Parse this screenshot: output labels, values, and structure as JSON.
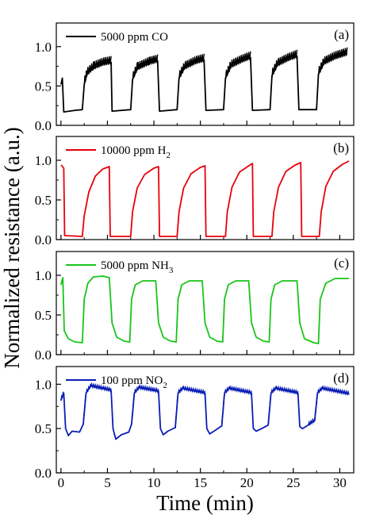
{
  "chart_data": {
    "type": "line",
    "xlabel": "Time (min)",
    "ylabel": "Normalized resistance (a.u.)",
    "x_ticks": [
      0,
      5,
      10,
      15,
      20,
      25,
      30
    ],
    "xlim": [
      -0.5,
      31.5
    ],
    "grid": false,
    "legend_position": "top-left",
    "panels": [
      {
        "tag": "(a)",
        "legend": "5000 ppm CO",
        "color": "#000000",
        "ylim": [
          0,
          1.3
        ],
        "y_ticks": [
          "0.0",
          "0.5",
          "1.0"
        ],
        "y_tick_values": [
          0,
          0.5,
          1.0
        ],
        "points": [
          [
            0,
            0.52
          ],
          [
            0.15,
            0.6
          ],
          [
            0.3,
            0.17
          ],
          [
            1.5,
            0.19
          ],
          [
            2.3,
            0.2
          ],
          [
            2.5,
            0.52
          ],
          [
            2.8,
            0.65
          ],
          [
            3.5,
            0.73
          ],
          [
            4.5,
            0.78
          ],
          [
            5.4,
            0.8
          ],
          [
            5.5,
            0.18
          ],
          [
            7.5,
            0.2
          ],
          [
            7.7,
            0.58
          ],
          [
            8.2,
            0.72
          ],
          [
            9.5,
            0.79
          ],
          [
            10.4,
            0.82
          ],
          [
            10.6,
            0.18
          ],
          [
            12.5,
            0.2
          ],
          [
            12.7,
            0.6
          ],
          [
            13.3,
            0.73
          ],
          [
            14.5,
            0.8
          ],
          [
            15.4,
            0.83
          ],
          [
            15.6,
            0.19
          ],
          [
            17.5,
            0.2
          ],
          [
            17.7,
            0.6
          ],
          [
            18.3,
            0.75
          ],
          [
            19.5,
            0.82
          ],
          [
            20.4,
            0.86
          ],
          [
            20.6,
            0.19
          ],
          [
            22.5,
            0.2
          ],
          [
            22.7,
            0.63
          ],
          [
            23.3,
            0.77
          ],
          [
            24.5,
            0.84
          ],
          [
            25.4,
            0.88
          ],
          [
            25.6,
            0.2
          ],
          [
            27.5,
            0.2
          ],
          [
            27.7,
            0.65
          ],
          [
            28.3,
            0.79
          ],
          [
            29.5,
            0.86
          ],
          [
            30.8,
            0.91
          ]
        ],
        "noise_band": 0.08
      },
      {
        "tag": "(b)",
        "legend": "10000 ppm H2",
        "legend_main": "10000 ppm H",
        "legend_sub": "2",
        "color": "#e8000b",
        "ylim": [
          0,
          1.3
        ],
        "y_ticks": [
          "0.0",
          "0.5",
          "1.0"
        ],
        "y_tick_values": [
          0,
          0.5,
          1.0
        ],
        "points": [
          [
            0,
            0.94
          ],
          [
            0.1,
            0.93
          ],
          [
            0.3,
            0.9
          ],
          [
            0.4,
            0.05
          ],
          [
            2.3,
            0.04
          ],
          [
            2.5,
            0.3
          ],
          [
            3.0,
            0.6
          ],
          [
            3.7,
            0.8
          ],
          [
            4.5,
            0.89
          ],
          [
            5.2,
            0.92
          ],
          [
            5.3,
            0.04
          ],
          [
            7.5,
            0.04
          ],
          [
            7.7,
            0.35
          ],
          [
            8.2,
            0.65
          ],
          [
            9.0,
            0.82
          ],
          [
            10.0,
            0.9
          ],
          [
            10.5,
            0.92
          ],
          [
            10.6,
            0.04
          ],
          [
            12.5,
            0.04
          ],
          [
            12.7,
            0.35
          ],
          [
            13.2,
            0.65
          ],
          [
            14.0,
            0.83
          ],
          [
            15.0,
            0.91
          ],
          [
            15.5,
            0.93
          ],
          [
            15.6,
            0.04
          ],
          [
            17.7,
            0.04
          ],
          [
            17.9,
            0.35
          ],
          [
            18.4,
            0.66
          ],
          [
            19.2,
            0.85
          ],
          [
            20.2,
            0.93
          ],
          [
            20.6,
            0.96
          ],
          [
            20.7,
            0.04
          ],
          [
            22.7,
            0.04
          ],
          [
            22.9,
            0.35
          ],
          [
            23.4,
            0.66
          ],
          [
            24.2,
            0.86
          ],
          [
            25.2,
            0.94
          ],
          [
            25.8,
            0.97
          ],
          [
            25.9,
            0.04
          ],
          [
            27.8,
            0.04
          ],
          [
            28.0,
            0.35
          ],
          [
            28.5,
            0.67
          ],
          [
            29.3,
            0.86
          ],
          [
            30.3,
            0.95
          ],
          [
            31.0,
            0.99
          ]
        ],
        "noise_band": 0
      },
      {
        "tag": "(c)",
        "legend": "5000 ppm NH3",
        "legend_main": "5000 ppm NH",
        "legend_sub": "3",
        "color": "#18c418",
        "ylim": [
          0,
          1.3
        ],
        "y_ticks": [
          "0.0",
          "0.5",
          "1.0"
        ],
        "y_tick_values": [
          0,
          0.5,
          1.0
        ],
        "points": [
          [
            0,
            0.88
          ],
          [
            0.2,
            0.97
          ],
          [
            0.35,
            0.3
          ],
          [
            0.8,
            0.2
          ],
          [
            1.5,
            0.16
          ],
          [
            2.3,
            0.15
          ],
          [
            2.5,
            0.7
          ],
          [
            2.9,
            0.9
          ],
          [
            3.5,
            0.98
          ],
          [
            4.5,
            0.99
          ],
          [
            5.2,
            0.97
          ],
          [
            5.5,
            0.4
          ],
          [
            6.0,
            0.22
          ],
          [
            6.8,
            0.17
          ],
          [
            7.4,
            0.16
          ],
          [
            7.6,
            0.7
          ],
          [
            8.0,
            0.88
          ],
          [
            8.8,
            0.93
          ],
          [
            10.2,
            0.93
          ],
          [
            10.5,
            0.4
          ],
          [
            11.0,
            0.22
          ],
          [
            11.8,
            0.17
          ],
          [
            12.4,
            0.16
          ],
          [
            12.6,
            0.7
          ],
          [
            13.0,
            0.88
          ],
          [
            13.8,
            0.93
          ],
          [
            15.2,
            0.93
          ],
          [
            15.5,
            0.4
          ],
          [
            16.0,
            0.22
          ],
          [
            16.8,
            0.17
          ],
          [
            17.4,
            0.16
          ],
          [
            17.6,
            0.7
          ],
          [
            18.0,
            0.88
          ],
          [
            18.8,
            0.93
          ],
          [
            20.2,
            0.93
          ],
          [
            20.5,
            0.4
          ],
          [
            21.0,
            0.22
          ],
          [
            21.8,
            0.17
          ],
          [
            22.4,
            0.16
          ],
          [
            22.6,
            0.7
          ],
          [
            23.0,
            0.88
          ],
          [
            23.8,
            0.93
          ],
          [
            25.4,
            0.93
          ],
          [
            25.7,
            0.4
          ],
          [
            26.2,
            0.2
          ],
          [
            27.2,
            0.15
          ],
          [
            27.7,
            0.14
          ],
          [
            27.9,
            0.7
          ],
          [
            28.5,
            0.9
          ],
          [
            29.5,
            0.96
          ],
          [
            31.0,
            0.96
          ]
        ],
        "noise_band": 0
      },
      {
        "tag": "(d)",
        "legend": "100 ppm NO2",
        "legend_main": "100 ppm NO",
        "legend_sub": "2",
        "color": "#0a1eb4",
        "ylim": [
          0,
          1.2
        ],
        "y_ticks": [
          "0.0",
          "0.5",
          "1.0"
        ],
        "y_tick_values": [
          0,
          0.5,
          1.0
        ],
        "points": [
          [
            0,
            0.82
          ],
          [
            0.3,
            0.9
          ],
          [
            0.5,
            0.5
          ],
          [
            0.8,
            0.42
          ],
          [
            1.2,
            0.47
          ],
          [
            2.0,
            0.46
          ],
          [
            2.4,
            0.55
          ],
          [
            2.7,
            0.9
          ],
          [
            3.2,
            0.98
          ],
          [
            4.5,
            0.95
          ],
          [
            5.4,
            0.93
          ],
          [
            5.6,
            0.5
          ],
          [
            5.9,
            0.38
          ],
          [
            6.5,
            0.43
          ],
          [
            7.3,
            0.46
          ],
          [
            7.6,
            0.55
          ],
          [
            7.9,
            0.9
          ],
          [
            8.4,
            0.96
          ],
          [
            10.5,
            0.92
          ],
          [
            10.7,
            0.5
          ],
          [
            11.0,
            0.43
          ],
          [
            11.5,
            0.47
          ],
          [
            12.3,
            0.51
          ],
          [
            12.6,
            0.9
          ],
          [
            13.1,
            0.95
          ],
          [
            15.5,
            0.9
          ],
          [
            15.7,
            0.5
          ],
          [
            16.0,
            0.44
          ],
          [
            16.6,
            0.48
          ],
          [
            17.3,
            0.53
          ],
          [
            17.6,
            0.9
          ],
          [
            18.1,
            0.95
          ],
          [
            20.5,
            0.9
          ],
          [
            20.7,
            0.5
          ],
          [
            21.0,
            0.47
          ],
          [
            21.6,
            0.5
          ],
          [
            22.3,
            0.54
          ],
          [
            22.6,
            0.9
          ],
          [
            23.1,
            0.95
          ],
          [
            25.5,
            0.9
          ],
          [
            25.7,
            0.52
          ],
          [
            26.0,
            0.5
          ],
          [
            26.6,
            0.54
          ],
          [
            27.3,
            0.59
          ],
          [
            27.6,
            0.9
          ],
          [
            28.1,
            0.95
          ],
          [
            31.0,
            0.89
          ]
        ],
        "noise_band": 0.025
      }
    ]
  }
}
